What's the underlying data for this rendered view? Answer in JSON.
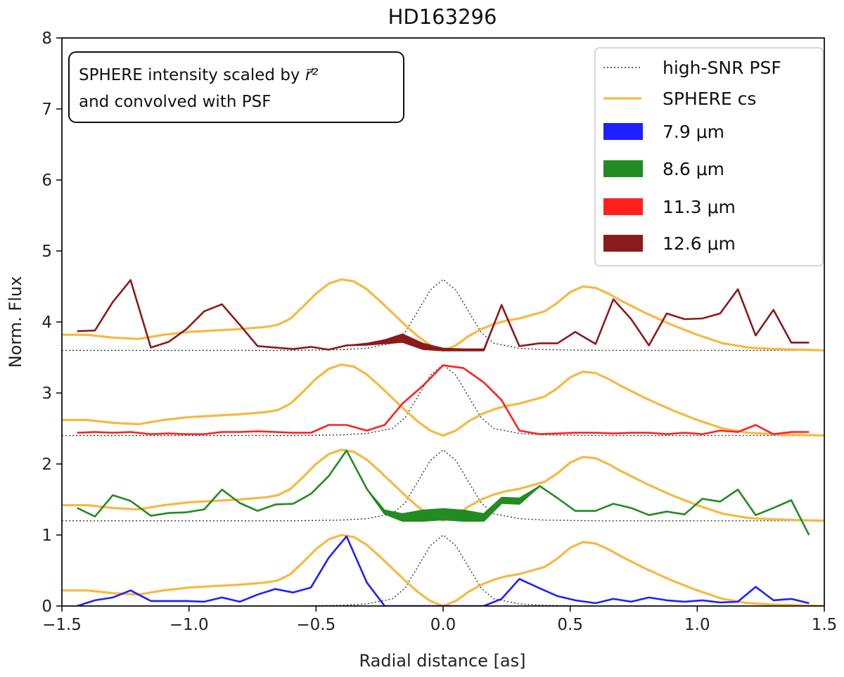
{
  "chart_data": {
    "type": "line",
    "title": "HD163296",
    "xlabel": "Radial distance [as]",
    "ylabel": "Norm. Flux",
    "xlim": [
      -1.5,
      1.5
    ],
    "ylim": [
      0,
      8
    ],
    "xticks": [
      -1.5,
      -1.0,
      -0.5,
      0.0,
      0.5,
      1.0,
      1.5
    ],
    "xtick_labels": [
      "−1.5",
      "−1.0",
      "−0.5",
      "0.0",
      "0.5",
      "1.0",
      "1.5"
    ],
    "yticks": [
      0,
      1,
      2,
      3,
      4,
      5,
      6,
      7,
      8
    ],
    "ytick_labels": [
      "0",
      "1",
      "2",
      "3",
      "4",
      "5",
      "6",
      "7",
      "8"
    ],
    "grid": false,
    "legend_position": "top-right",
    "annotation": {
      "line1_prefix": "SPHERE intensity scaled by ",
      "line1_symbol": "r⃗²",
      "line2": " and convolved with PSF"
    },
    "legend": [
      {
        "label": "high-SNR PSF",
        "style": "dotted",
        "color": "#333333"
      },
      {
        "label": "SPHERE cs",
        "style": "line",
        "color": "#f5b942"
      },
      {
        "label": "7.9 μm",
        "style": "patch",
        "color": "#1f1fff"
      },
      {
        "label": "8.6 μm",
        "style": "patch",
        "color": "#228b22"
      },
      {
        "label": "11.3 μm",
        "style": "patch",
        "color": "#ff2020"
      },
      {
        "label": "12.6 μm",
        "style": "patch",
        "color": "#8b1a1a"
      }
    ],
    "psf_shape": {
      "x": [
        -1.5,
        -0.6,
        -0.4,
        -0.3,
        -0.2,
        -0.15,
        -0.1,
        -0.05,
        0.0,
        0.05,
        0.1,
        0.15,
        0.2,
        0.3,
        0.4,
        0.6,
        1.5
      ],
      "y": [
        0.0,
        0.0,
        0.01,
        0.03,
        0.1,
        0.25,
        0.55,
        0.85,
        1.0,
        0.85,
        0.55,
        0.25,
        0.1,
        0.03,
        0.01,
        0.0,
        0.0
      ]
    },
    "series": [
      {
        "name": "7.9 μm",
        "offset": 0.0,
        "color": "#1f1fff",
        "x": [
          -1.44,
          -1.37,
          -1.3,
          -1.23,
          -1.15,
          -1.08,
          -1.01,
          -0.94,
          -0.87,
          -0.8,
          -0.73,
          -0.66,
          -0.59,
          -0.52,
          -0.45,
          -0.38,
          -0.3,
          -0.23,
          -0.16,
          -0.08,
          0.0,
          0.08,
          0.16,
          0.23,
          0.3,
          0.38,
          0.45,
          0.52,
          0.6,
          0.67,
          0.74,
          0.81,
          0.88,
          0.95,
          1.02,
          1.09,
          1.16,
          1.23,
          1.3,
          1.37,
          1.44
        ],
        "y": [
          0.0,
          0.08,
          0.12,
          0.22,
          0.07,
          0.07,
          0.07,
          0.06,
          0.12,
          0.06,
          0.16,
          0.24,
          0.19,
          0.26,
          0.68,
          0.98,
          0.33,
          0.0,
          0.0,
          0.0,
          0.0,
          0.0,
          0.0,
          0.1,
          0.38,
          0.25,
          0.14,
          0.08,
          0.04,
          0.1,
          0.06,
          0.12,
          0.08,
          0.06,
          0.08,
          0.05,
          0.06,
          0.27,
          0.08,
          0.1,
          0.04
        ],
        "y_upper": []
      },
      {
        "name": "8.6 μm",
        "offset": 1.2,
        "color": "#228b22",
        "x": [
          -1.44,
          -1.37,
          -1.3,
          -1.23,
          -1.15,
          -1.08,
          -1.01,
          -0.94,
          -0.87,
          -0.8,
          -0.73,
          -0.66,
          -0.59,
          -0.52,
          -0.45,
          -0.38,
          -0.3,
          -0.23,
          -0.16,
          -0.08,
          0.0,
          0.08,
          0.16,
          0.23,
          0.3,
          0.38,
          0.45,
          0.52,
          0.6,
          0.67,
          0.74,
          0.81,
          0.88,
          0.95,
          1.02,
          1.09,
          1.16,
          1.23,
          1.3,
          1.37,
          1.44
        ],
        "y": [
          1.38,
          1.26,
          1.56,
          1.48,
          1.27,
          1.31,
          1.32,
          1.36,
          1.64,
          1.45,
          1.34,
          1.43,
          1.44,
          1.58,
          1.83,
          2.19,
          1.65,
          1.3,
          1.2,
          1.2,
          1.22,
          1.2,
          1.2,
          1.45,
          1.44,
          1.69,
          1.52,
          1.34,
          1.34,
          1.44,
          1.38,
          1.28,
          1.33,
          1.29,
          1.51,
          1.47,
          1.64,
          1.28,
          1.38,
          1.49,
          1.0
        ],
        "y_upper": [
          1.38,
          1.26,
          1.56,
          1.48,
          1.27,
          1.31,
          1.32,
          1.36,
          1.64,
          1.45,
          1.34,
          1.43,
          1.44,
          1.58,
          1.83,
          2.19,
          1.65,
          1.35,
          1.3,
          1.35,
          1.37,
          1.35,
          1.3,
          1.53,
          1.52,
          1.69,
          1.52,
          1.34,
          1.34,
          1.44,
          1.38,
          1.28,
          1.33,
          1.29,
          1.51,
          1.47,
          1.64,
          1.28,
          1.38,
          1.49,
          1.0
        ]
      },
      {
        "name": "11.3 μm",
        "offset": 2.4,
        "color": "#ff2020",
        "x": [
          -1.44,
          -1.37,
          -1.3,
          -1.23,
          -1.15,
          -1.08,
          -1.01,
          -0.94,
          -0.87,
          -0.8,
          -0.73,
          -0.66,
          -0.59,
          -0.52,
          -0.45,
          -0.38,
          -0.3,
          -0.23,
          -0.16,
          -0.08,
          0.0,
          0.08,
          0.16,
          0.23,
          0.3,
          0.38,
          0.45,
          0.52,
          0.6,
          0.67,
          0.74,
          0.81,
          0.88,
          0.95,
          1.02,
          1.09,
          1.16,
          1.23,
          1.3,
          1.37,
          1.44
        ],
        "y": [
          2.44,
          2.45,
          2.44,
          2.45,
          2.42,
          2.43,
          2.42,
          2.42,
          2.45,
          2.45,
          2.46,
          2.45,
          2.44,
          2.44,
          2.55,
          2.55,
          2.47,
          2.55,
          2.85,
          3.1,
          3.39,
          3.35,
          3.15,
          2.9,
          2.47,
          2.42,
          2.43,
          2.44,
          2.44,
          2.43,
          2.44,
          2.44,
          2.42,
          2.44,
          2.42,
          2.47,
          2.45,
          2.55,
          2.42,
          2.45,
          2.45
        ],
        "y_upper": []
      },
      {
        "name": "12.6 μm",
        "offset": 3.6,
        "color": "#8b1a1a",
        "x": [
          -1.44,
          -1.37,
          -1.3,
          -1.23,
          -1.15,
          -1.08,
          -1.01,
          -0.94,
          -0.87,
          -0.8,
          -0.73,
          -0.66,
          -0.59,
          -0.52,
          -0.45,
          -0.38,
          -0.3,
          -0.23,
          -0.16,
          -0.08,
          0.0,
          0.08,
          0.16,
          0.23,
          0.3,
          0.38,
          0.45,
          0.52,
          0.6,
          0.67,
          0.74,
          0.81,
          0.88,
          0.95,
          1.02,
          1.09,
          1.16,
          1.23,
          1.3,
          1.37,
          1.44
        ],
        "y": [
          3.87,
          3.88,
          4.28,
          4.59,
          3.64,
          3.72,
          3.9,
          4.15,
          4.25,
          3.96,
          3.66,
          3.64,
          3.62,
          3.65,
          3.61,
          3.67,
          3.68,
          3.7,
          3.72,
          3.62,
          3.6,
          3.6,
          3.6,
          4.24,
          3.66,
          3.7,
          3.7,
          3.86,
          3.69,
          4.32,
          4.04,
          3.67,
          4.12,
          4.04,
          4.05,
          4.12,
          4.46,
          3.81,
          4.17,
          3.71,
          3.71
        ],
        "y_upper": [
          3.87,
          3.88,
          4.28,
          4.59,
          3.64,
          3.72,
          3.9,
          4.15,
          4.25,
          3.96,
          3.66,
          3.64,
          3.62,
          3.65,
          3.61,
          3.67,
          3.7,
          3.75,
          3.83,
          3.7,
          3.63,
          3.62,
          3.62,
          4.24,
          3.66,
          3.7,
          3.7,
          3.86,
          3.69,
          4.32,
          4.04,
          3.67,
          4.12,
          4.04,
          4.05,
          4.12,
          4.46,
          3.81,
          4.17,
          3.71,
          3.71
        ]
      }
    ],
    "sphere_cs_shape": {
      "x": [
        -1.5,
        -1.4,
        -1.3,
        -1.2,
        -1.1,
        -1.0,
        -0.9,
        -0.8,
        -0.7,
        -0.65,
        -0.6,
        -0.55,
        -0.5,
        -0.45,
        -0.4,
        -0.35,
        -0.3,
        -0.25,
        -0.2,
        -0.15,
        -0.1,
        -0.05,
        0.0,
        0.05,
        0.1,
        0.15,
        0.2,
        0.25,
        0.3,
        0.35,
        0.4,
        0.45,
        0.5,
        0.55,
        0.6,
        0.65,
        0.7,
        0.8,
        0.9,
        1.0,
        1.1,
        1.2,
        1.3,
        1.4,
        1.5
      ],
      "y": [
        0.22,
        0.22,
        0.18,
        0.16,
        0.22,
        0.26,
        0.28,
        0.3,
        0.33,
        0.36,
        0.45,
        0.62,
        0.8,
        0.94,
        1.0,
        0.97,
        0.86,
        0.7,
        0.53,
        0.36,
        0.2,
        0.07,
        0.0,
        0.07,
        0.2,
        0.3,
        0.37,
        0.42,
        0.45,
        0.5,
        0.55,
        0.67,
        0.82,
        0.9,
        0.88,
        0.8,
        0.7,
        0.52,
        0.36,
        0.22,
        0.1,
        0.04,
        0.02,
        0.01,
        0.0
      ]
    },
    "sphere_cs_offsets": [
      0.0,
      1.2,
      2.4,
      3.6
    ],
    "sphere_cs_scales": [
      1.0,
      1.0,
      1.0,
      1.0
    ]
  }
}
